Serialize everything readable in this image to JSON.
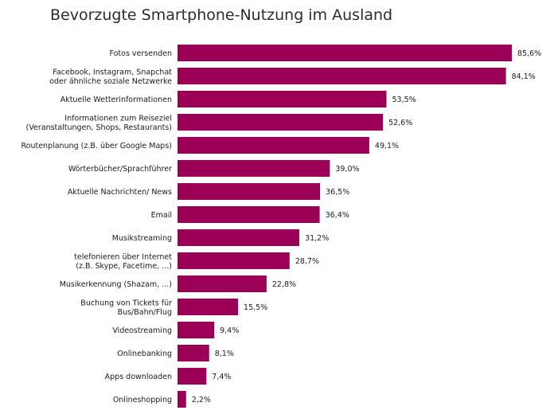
{
  "chart_data": {
    "type": "bar",
    "orientation": "horizontal",
    "title": "Bevorzugte Smartphone-Nutzung im Ausland",
    "bar_color": "#9b0056",
    "xlim": [
      0,
      85.6
    ],
    "categories": [
      [
        "Fotos versenden"
      ],
      [
        "Facebook, Instagram, Snapchat",
        "oder ähnliche soziale Netzwerke"
      ],
      [
        "Aktuelle Wetterinformationen"
      ],
      [
        "Informationen zum Reiseziel",
        "(Veranstaltungen, Shops, Restaurants)"
      ],
      [
        "Routenplanung (z.B. über Google Maps)"
      ],
      [
        "Wörterbücher/Sprachführer"
      ],
      [
        "Aktuelle Nachrichten/ News"
      ],
      [
        "Email"
      ],
      [
        "Musikstreaming"
      ],
      [
        "telefonieren über Internet",
        "(z.B. Skype, Facetime, ...)"
      ],
      [
        "Musikerkennung (Shazam, ...)"
      ],
      [
        "Buchung von Tickets für",
        "Bus/Bahn/Flug"
      ],
      [
        "Videostreaming"
      ],
      [
        "Onlinebanking"
      ],
      [
        "Apps downloaden"
      ],
      [
        "Onlineshopping"
      ]
    ],
    "values": [
      85.6,
      84.1,
      53.5,
      52.6,
      49.1,
      39.0,
      36.5,
      36.4,
      31.2,
      28.7,
      22.8,
      15.5,
      9.4,
      8.1,
      7.4,
      2.2
    ],
    "value_labels": [
      "85,6%",
      "84,1%",
      "53,5%",
      "52,6%",
      "49,1%",
      "39,0%",
      "36,5%",
      "36,4%",
      "31,2%",
      "28,7%",
      "22,8%",
      "15,5%",
      "9,4%",
      "8,1%",
      "7,4%",
      "2,2%"
    ]
  }
}
